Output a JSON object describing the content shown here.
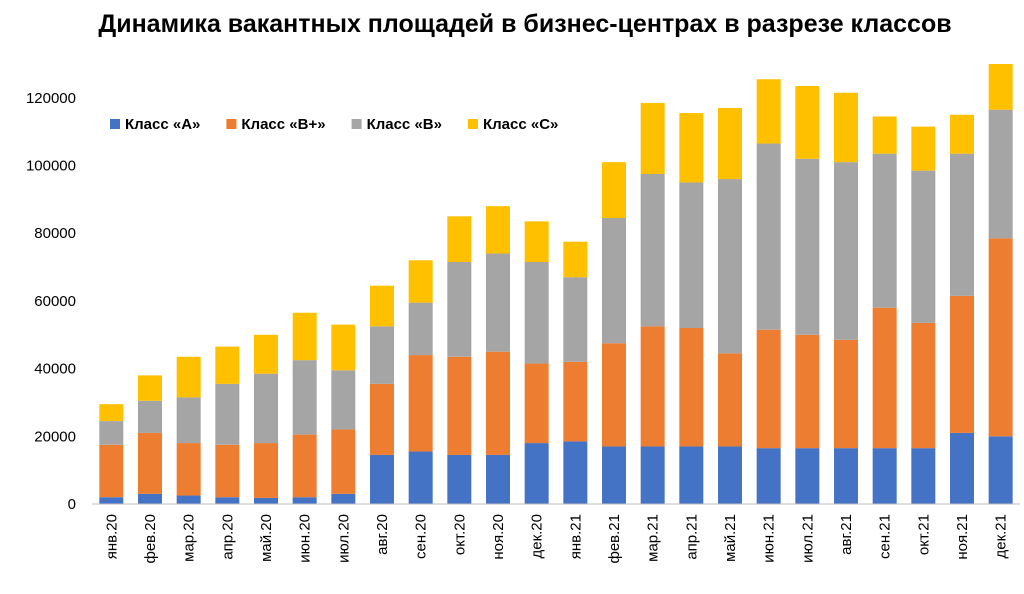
{
  "chart_data": {
    "type": "stacked-bar",
    "title": "Динамика вакантных площадей в бизнес-центрах в разрезе классов",
    "categories": [
      "янв.20",
      "фев.20",
      "мар.20",
      "апр.20",
      "май.20",
      "июн.20",
      "июл.20",
      "авг.20",
      "сен.20",
      "окт.20",
      "ноя.20",
      "дек.20",
      "янв.21",
      "фев.21",
      "мар.21",
      "апр.21",
      "май.21",
      "июн.21",
      "июл.21",
      "авг.21",
      "сен.21",
      "окт.21",
      "ноя.21",
      "дек.21"
    ],
    "series": [
      {
        "name": "Класс «А»",
        "color": "#4472c4",
        "values": [
          2000,
          3000,
          2500,
          2000,
          1800,
          2000,
          3000,
          14500,
          15500,
          14500,
          14500,
          18000,
          18500,
          17000,
          17000,
          17000,
          17000,
          16500,
          16500,
          16500,
          16500,
          16500,
          21000,
          20000
        ]
      },
      {
        "name": "Класс «В+»",
        "color": "#ed7d31",
        "values": [
          15500,
          18000,
          15500,
          15500,
          16200,
          18500,
          19000,
          21000,
          28500,
          29000,
          30500,
          23500,
          23500,
          30500,
          35500,
          35000,
          27500,
          35000,
          33500,
          32000,
          41500,
          37000,
          40500,
          58500
        ]
      },
      {
        "name": "Класс «В»",
        "color": "#a5a5a5",
        "values": [
          7000,
          9500,
          13500,
          18000,
          20500,
          22000,
          17500,
          17000,
          15500,
          28000,
          29000,
          30000,
          25000,
          37000,
          45000,
          43000,
          51500,
          55000,
          52000,
          52500,
          45500,
          45000,
          42000,
          38000
        ]
      },
      {
        "name": "Класс «С»",
        "color": "#ffc000",
        "values": [
          5000,
          7500,
          12000,
          11000,
          11500,
          14000,
          13500,
          12000,
          12500,
          13500,
          14000,
          12000,
          10500,
          16500,
          21000,
          20500,
          21000,
          19000,
          21500,
          20500,
          11000,
          13000,
          11500,
          13500
        ]
      }
    ],
    "ylim": [
      0,
      130000
    ],
    "yticks": [
      0,
      20000,
      40000,
      60000,
      80000,
      100000,
      120000
    ],
    "grid": false,
    "legend": "top-left"
  }
}
